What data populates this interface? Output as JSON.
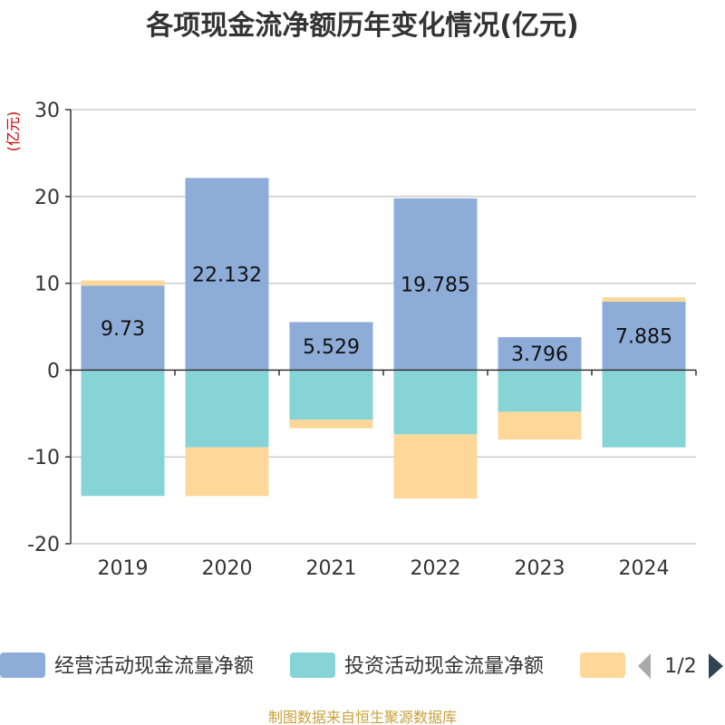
{
  "chart_data": {
    "type": "bar",
    "stacked": true,
    "title": "各项现金流净额历年变化情况(亿元)",
    "ylabel": "(亿元)",
    "xlabel": "",
    "ylim": [
      -20,
      30
    ],
    "yticks": [
      30,
      20,
      10,
      0,
      -10,
      -20
    ],
    "categories": [
      "2019",
      "2020",
      "2021",
      "2022",
      "2023",
      "2024"
    ],
    "series": [
      {
        "name": "经营活动现金流量净额",
        "color": "#8eacd8",
        "values": [
          9.73,
          22.132,
          5.529,
          19.785,
          3.796,
          7.885
        ],
        "show_labels": true
      },
      {
        "name": "投资活动现金流量净额",
        "color": "#86d4d6",
        "values": [
          -14.5,
          -8.9,
          -5.7,
          -7.4,
          -4.8,
          -8.9
        ],
        "show_labels": false
      },
      {
        "name": "",
        "color": "#fdd899",
        "values": [
          0.6,
          -5.6,
          -1.0,
          -7.4,
          -3.2,
          0.5
        ],
        "show_labels": false
      }
    ],
    "legend": {
      "position": "bottom",
      "page": "1/2"
    },
    "grid": true
  },
  "source": "制图数据来自恒生聚源数据库",
  "colors": {
    "title": "#333333",
    "ylabel": "#cc0000",
    "source": "#c8a13a",
    "nav_prev": "#aaaaaa",
    "nav_next": "#2f4554"
  }
}
